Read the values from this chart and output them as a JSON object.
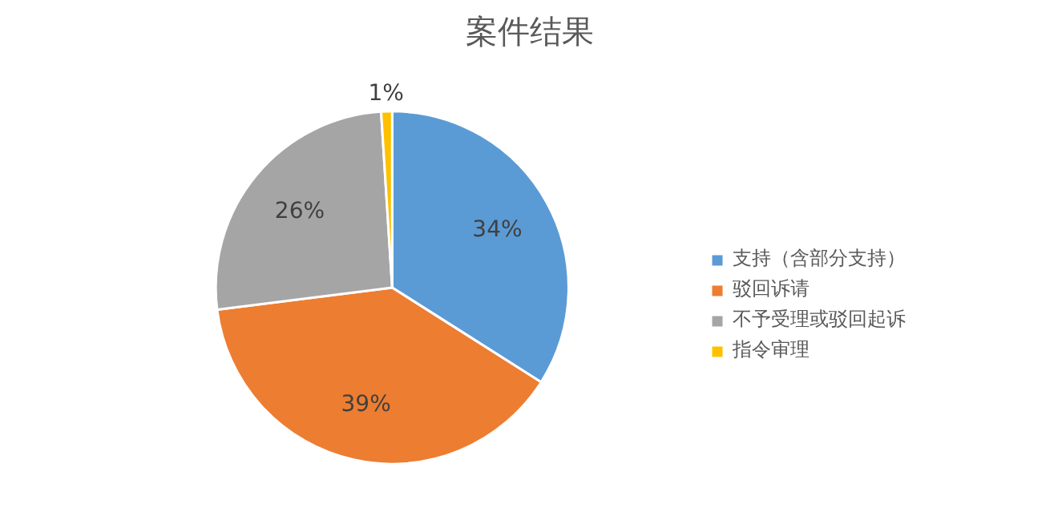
{
  "chart_data": {
    "type": "pie",
    "title": "案件结果",
    "categories": [
      "支持（含部分支持）",
      "驳回诉请",
      "不予受理或驳回起诉",
      "指令审理"
    ],
    "values": [
      34,
      39,
      26,
      1
    ],
    "colors": [
      "#5b9bd5",
      "#ed7d31",
      "#a5a5a5",
      "#ffc000"
    ],
    "value_labels": [
      "34%",
      "39%",
      "26%",
      "1%"
    ],
    "legend": "right"
  }
}
